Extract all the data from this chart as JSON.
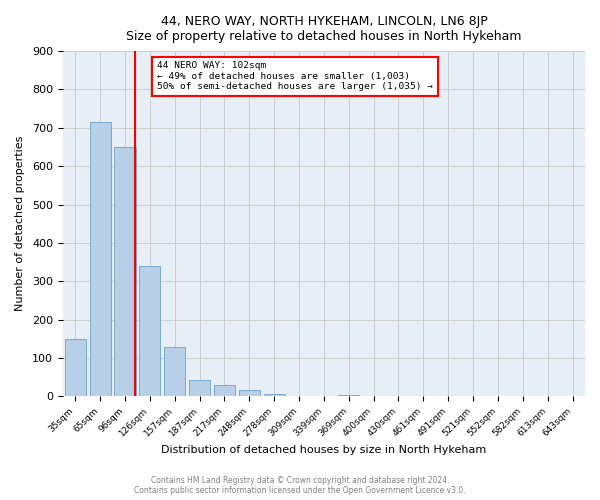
{
  "title": "44, NERO WAY, NORTH HYKEHAM, LINCOLN, LN6 8JP",
  "subtitle": "Size of property relative to detached houses in North Hykeham",
  "xlabel": "Distribution of detached houses by size in North Hykeham",
  "ylabel": "Number of detached properties",
  "bar_labels": [
    "35sqm",
    "65sqm",
    "96sqm",
    "126sqm",
    "157sqm",
    "187sqm",
    "217sqm",
    "248sqm",
    "278sqm",
    "309sqm",
    "339sqm",
    "369sqm",
    "400sqm",
    "430sqm",
    "461sqm",
    "491sqm",
    "521sqm",
    "552sqm",
    "582sqm",
    "613sqm",
    "643sqm"
  ],
  "bar_heights": [
    150,
    715,
    650,
    340,
    128,
    42,
    30,
    15,
    7,
    0,
    0,
    2,
    0,
    0,
    0,
    0,
    0,
    0,
    0,
    0,
    0
  ],
  "bar_color": "#b8cfe8",
  "bar_edgecolor": "#7aaad0",
  "ax_facecolor": "#e8eef6",
  "ylim": [
    0,
    900
  ],
  "yticks": [
    0,
    100,
    200,
    300,
    400,
    500,
    600,
    700,
    800,
    900
  ],
  "red_line_x": 2.42,
  "annotation_title": "44 NERO WAY: 102sqm",
  "annotation_line1": "← 49% of detached houses are smaller (1,003)",
  "annotation_line2": "50% of semi-detached houses are larger (1,035) →",
  "footer1": "Contains HM Land Registry data © Crown copyright and database right 2024.",
  "footer2": "Contains public sector information licensed under the Open Government Licence v3.0.",
  "background_color": "#ffffff",
  "grid_color": "#cccccc"
}
